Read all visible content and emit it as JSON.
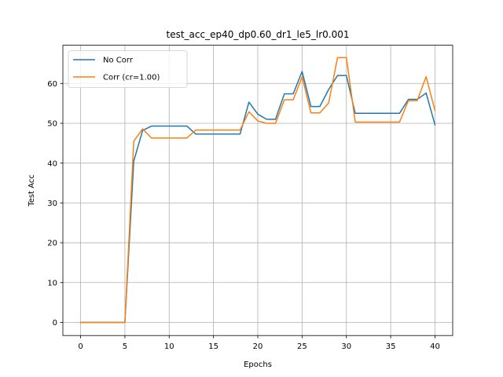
{
  "chart_data": {
    "type": "line",
    "title": "test_acc_ep40_dp0.60_dr1_le5_lr0.001",
    "xlabel": "Epochs",
    "ylabel": "Test Acc",
    "xlim": [
      -2,
      42
    ],
    "ylim": [
      -3.3,
      69.6
    ],
    "xticks": [
      0,
      5,
      10,
      15,
      20,
      25,
      30,
      35,
      40
    ],
    "yticks": [
      0,
      10,
      20,
      30,
      40,
      50,
      60
    ],
    "grid": true,
    "legend_position": "top-left",
    "x": [
      0,
      1,
      2,
      3,
      4,
      5,
      6,
      7,
      8,
      9,
      10,
      11,
      12,
      13,
      14,
      15,
      16,
      17,
      18,
      19,
      20,
      21,
      22,
      23,
      24,
      25,
      26,
      27,
      28,
      29,
      30,
      31,
      32,
      33,
      34,
      35,
      36,
      37,
      38,
      39,
      40
    ],
    "series": [
      {
        "name": "No Corr",
        "color": "#1f77b4",
        "values": [
          0,
          0,
          0,
          0,
          0,
          0,
          40.5,
          48.2,
          49.3,
          49.3,
          49.3,
          49.3,
          49.3,
          47.3,
          47.3,
          47.3,
          47.3,
          47.3,
          47.3,
          55.3,
          52.3,
          51.0,
          51.0,
          57.4,
          57.4,
          63.0,
          54.2,
          54.2,
          58.5,
          62.0,
          62.0,
          52.5,
          52.5,
          52.5,
          52.5,
          52.5,
          52.5,
          56.0,
          56.0,
          57.6,
          49.6
        ]
      },
      {
        "name": "Corr (cr=1.00)",
        "color": "#ff7f0e",
        "values": [
          0,
          0,
          0,
          0,
          0,
          0,
          45.5,
          48.6,
          46.3,
          46.3,
          46.3,
          46.3,
          46.3,
          48.3,
          48.3,
          48.3,
          48.3,
          48.3,
          48.3,
          52.9,
          50.6,
          50.0,
          50.0,
          55.9,
          55.9,
          61.7,
          52.6,
          52.6,
          55.1,
          66.5,
          66.5,
          50.3,
          50.3,
          50.3,
          50.3,
          50.3,
          50.3,
          55.7,
          55.7,
          61.7,
          53.2
        ]
      }
    ]
  }
}
